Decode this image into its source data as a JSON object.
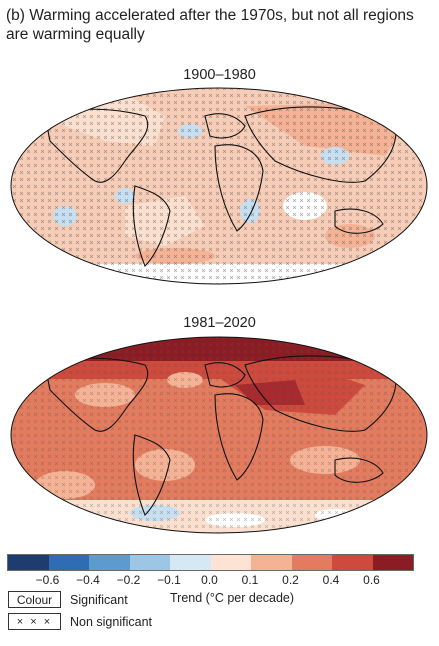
{
  "title": "(b) Warming accelerated after the 1970s, but not all regions are warming equally",
  "maps": [
    {
      "label": "1900–1980"
    },
    {
      "label": "1981–2020"
    }
  ],
  "colorbar": {
    "colors": [
      "#1f3c6e",
      "#2e6db4",
      "#5b9bd0",
      "#9cc6e4",
      "#d6e8f4",
      "#fde3d3",
      "#f5b295",
      "#e37b5f",
      "#cd4a3d",
      "#8c1c24"
    ],
    "ticks": [
      "−0.6",
      "−0.4",
      "−0.2",
      "−0.1",
      "0.0",
      "0.1",
      "0.2",
      "0.4",
      "0.6"
    ],
    "label": "Trend (°C per decade)"
  },
  "legend": {
    "colour_box": "Colour",
    "colour_label": "Significant",
    "hatch_box": "× × ×",
    "hatch_label": "Non significant"
  }
}
